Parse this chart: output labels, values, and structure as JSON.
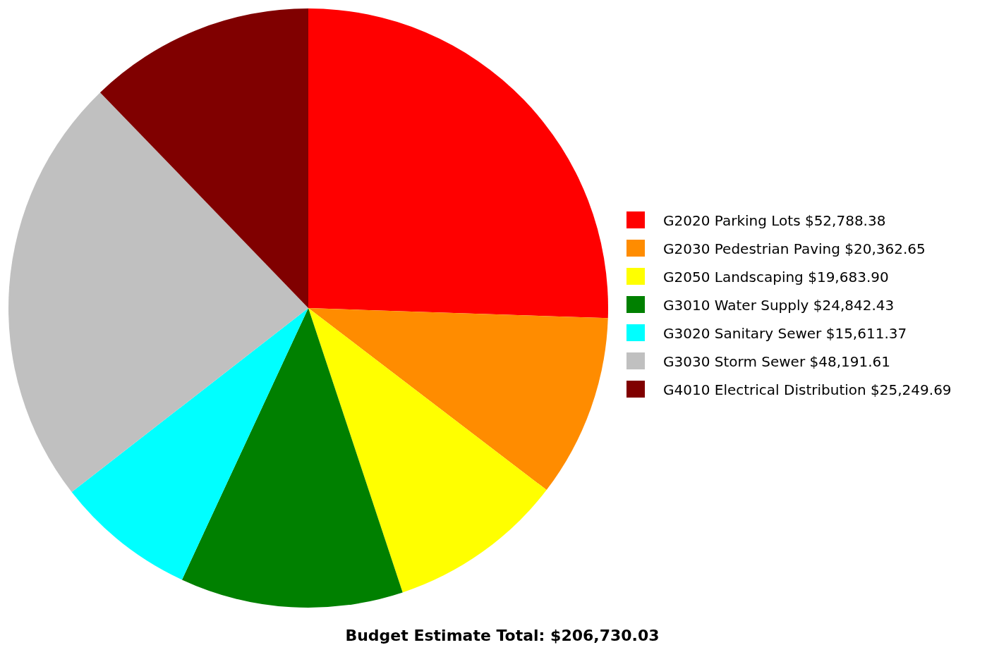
{
  "chart_data": {
    "type": "pie",
    "title": "Budget Estimate Total: $206,730.03",
    "categories": [
      "G2020 Parking Lots",
      "G2030 Pedestrian Paving",
      "G2050 Landscaping",
      "G3010 Water Supply",
      "G3020 Sanitary Sewer",
      "G3030 Storm Sewer",
      "G4010 Electrical Distribution"
    ],
    "values": [
      52788.38,
      20362.65,
      19683.9,
      24842.43,
      15611.37,
      48191.61,
      25249.69
    ],
    "value_labels": [
      "$52,788.38",
      "$20,362.65",
      "$19,683.90",
      "$24,842.43",
      "$15,611.37",
      "$48,191.61",
      "$25,249.69"
    ],
    "colors": [
      "#ff0000",
      "#ff8c00",
      "#ffff00",
      "#008000",
      "#00ffff",
      "#c0c0c0",
      "#800000"
    ],
    "legend": "right"
  }
}
